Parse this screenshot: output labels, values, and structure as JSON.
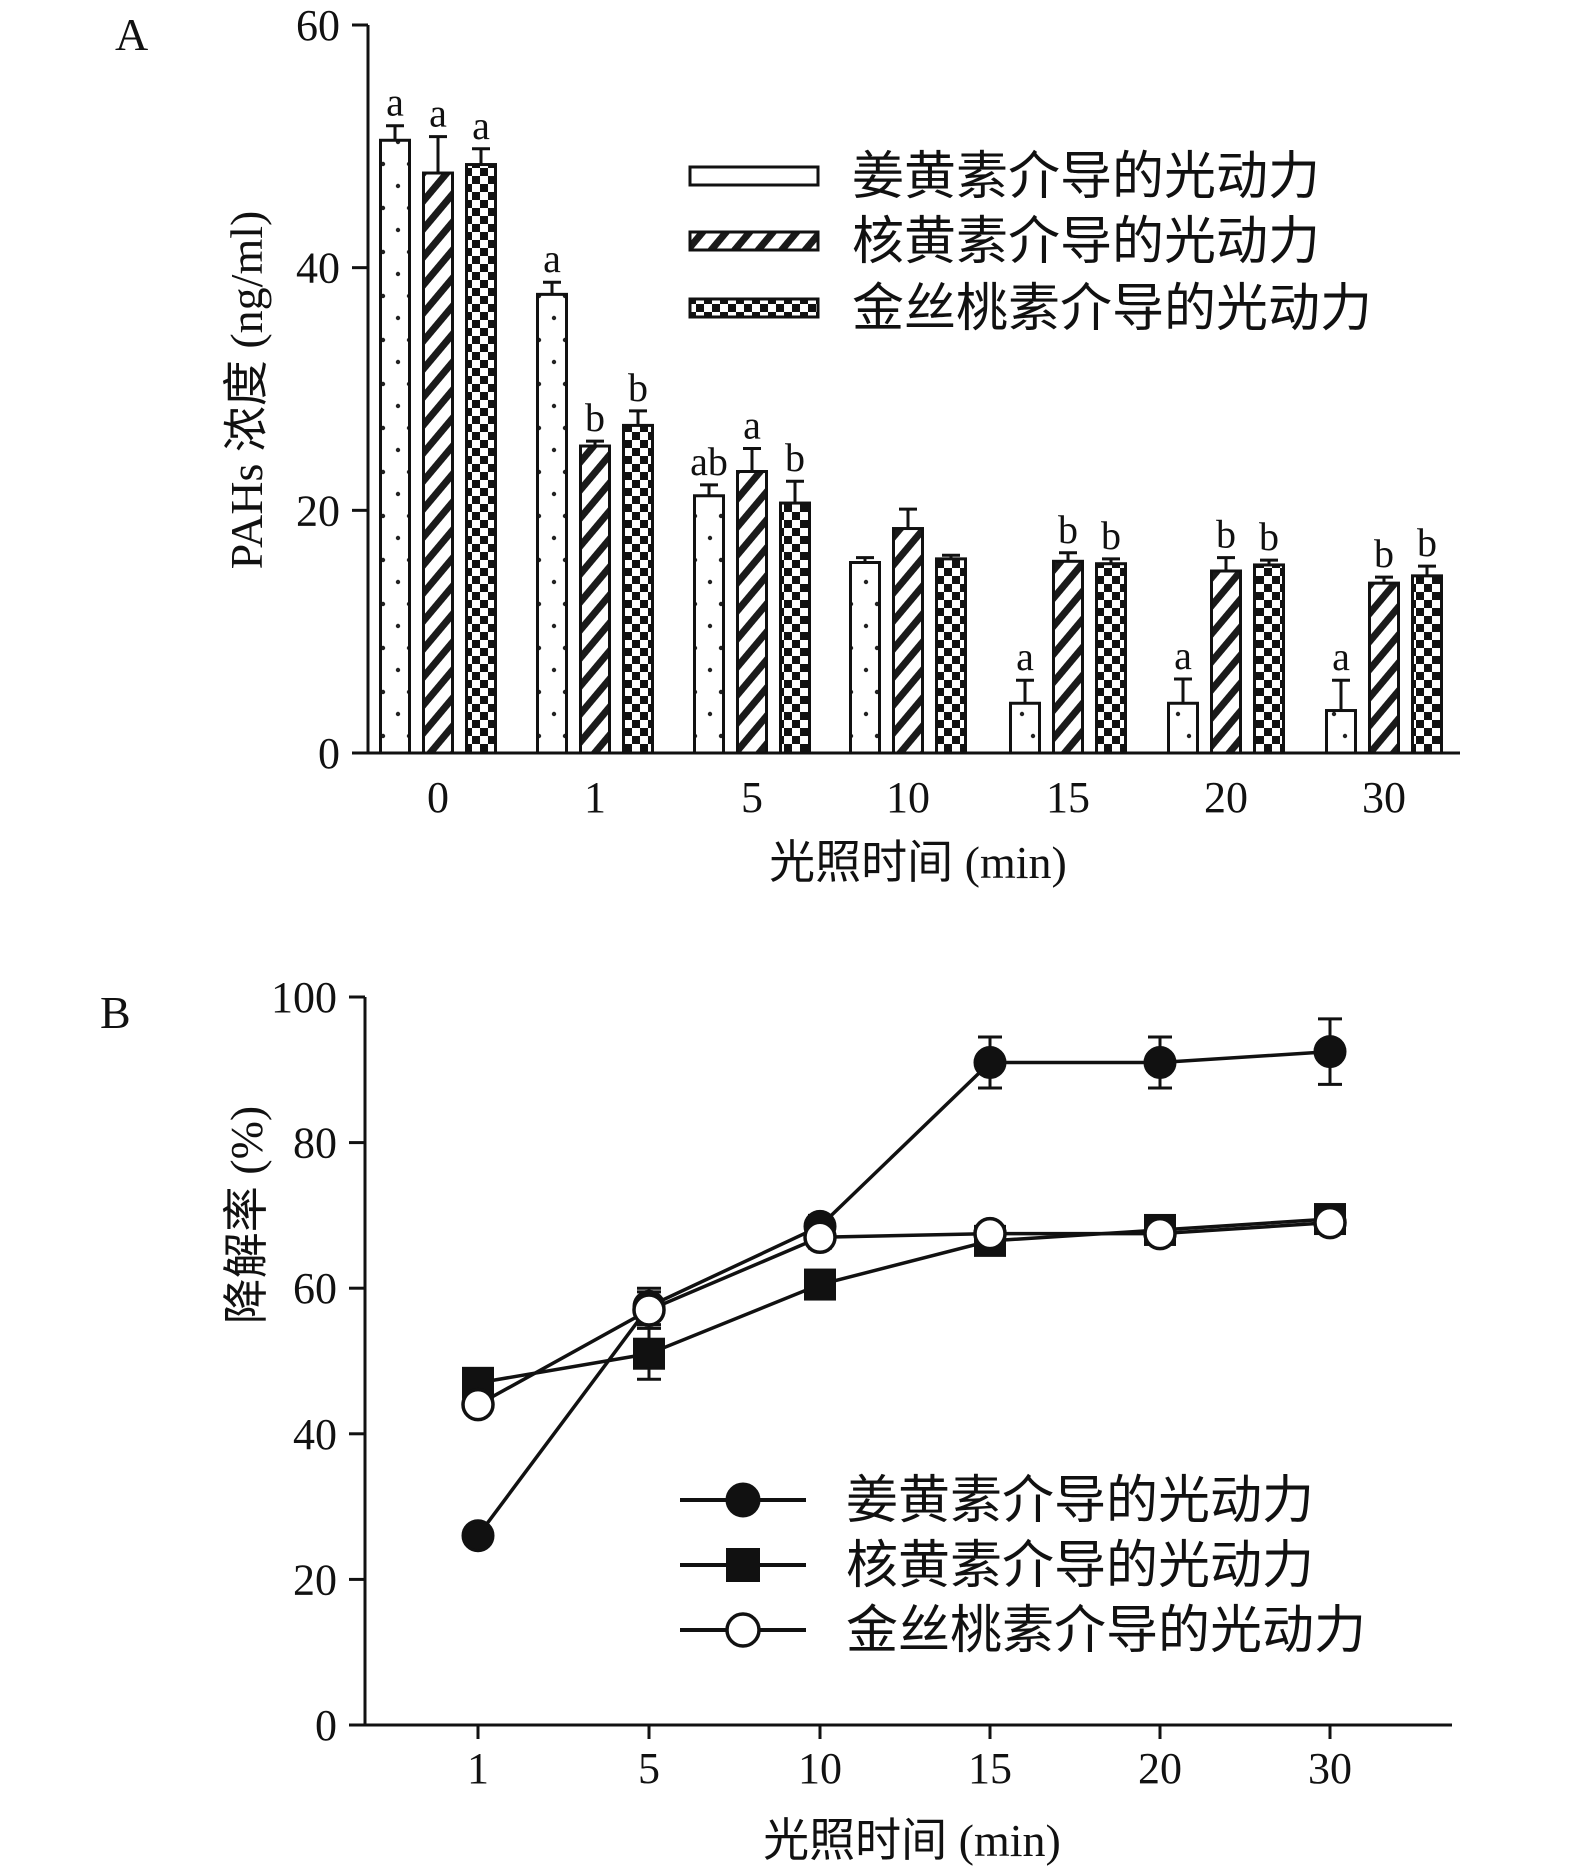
{
  "chart_data": [
    {
      "panel_label": "A",
      "type": "bar",
      "xlabel": "光照时间 (min)",
      "ylabel": "PAHs 浓度 (ng/ml)",
      "ylim": [
        0,
        60
      ],
      "yticks": [
        "0",
        "20",
        "40",
        "60"
      ],
      "categories": [
        "0",
        "1",
        "5",
        "10",
        "15",
        "20",
        "30"
      ],
      "series": [
        {
          "name": "姜黄素介导的光动力",
          "pattern": "dots",
          "values": [
            50.5,
            37.8,
            21.2,
            15.7,
            4.1,
            4.1,
            3.5
          ],
          "errors": [
            1.2,
            1.0,
            0.9,
            0.4,
            1.9,
            2.0,
            2.5
          ],
          "labels": [
            "a",
            "a",
            "ab",
            "",
            "a",
            "a",
            "a"
          ]
        },
        {
          "name": "核黄素介导的光动力",
          "pattern": "hatch",
          "values": [
            47.8,
            25.3,
            23.2,
            18.5,
            15.8,
            15.0,
            14.0
          ],
          "errors": [
            3.0,
            0.4,
            1.9,
            1.6,
            0.7,
            1.1,
            0.5
          ],
          "labels": [
            "a",
            "b",
            "a",
            "",
            "b",
            "b",
            "b"
          ]
        },
        {
          "name": "金丝桃素介导的光动力",
          "pattern": "checker",
          "values": [
            48.5,
            27.0,
            20.6,
            16.0,
            15.6,
            15.5,
            14.6
          ],
          "errors": [
            1.3,
            1.2,
            1.8,
            0.3,
            0.4,
            0.4,
            0.8
          ],
          "labels": [
            "a",
            "b",
            "b",
            "",
            "b",
            "b",
            "b"
          ]
        }
      ]
    },
    {
      "panel_label": "B",
      "type": "line",
      "xlabel": "光照时间 (min)",
      "ylabel": "降解率 (%)",
      "ylim": [
        0,
        100
      ],
      "yticks": [
        "0",
        "20",
        "40",
        "60",
        "80",
        "100"
      ],
      "categories": [
        "1",
        "5",
        "10",
        "15",
        "20",
        "30"
      ],
      "series": [
        {
          "name": "姜黄素介导的光动力",
          "marker": "filled-circle",
          "values": [
            26,
            57.5,
            68.5,
            91,
            91,
            92.5
          ],
          "errors": [
            0,
            2.5,
            1.5,
            3.5,
            3.5,
            4.5
          ]
        },
        {
          "name": "核黄素介导的光动力",
          "marker": "filled-square",
          "values": [
            47,
            51,
            60.5,
            66.5,
            68,
            69.5
          ],
          "errors": [
            0,
            3.5,
            1.5,
            1.0,
            1.0,
            1.0
          ]
        },
        {
          "name": "金丝桃素介导的光动力",
          "marker": "open-circle",
          "values": [
            44,
            57,
            67,
            67.5,
            67.5,
            69
          ],
          "errors": [
            0,
            2.5,
            1.5,
            1.0,
            1.0,
            1.0
          ]
        }
      ]
    }
  ]
}
